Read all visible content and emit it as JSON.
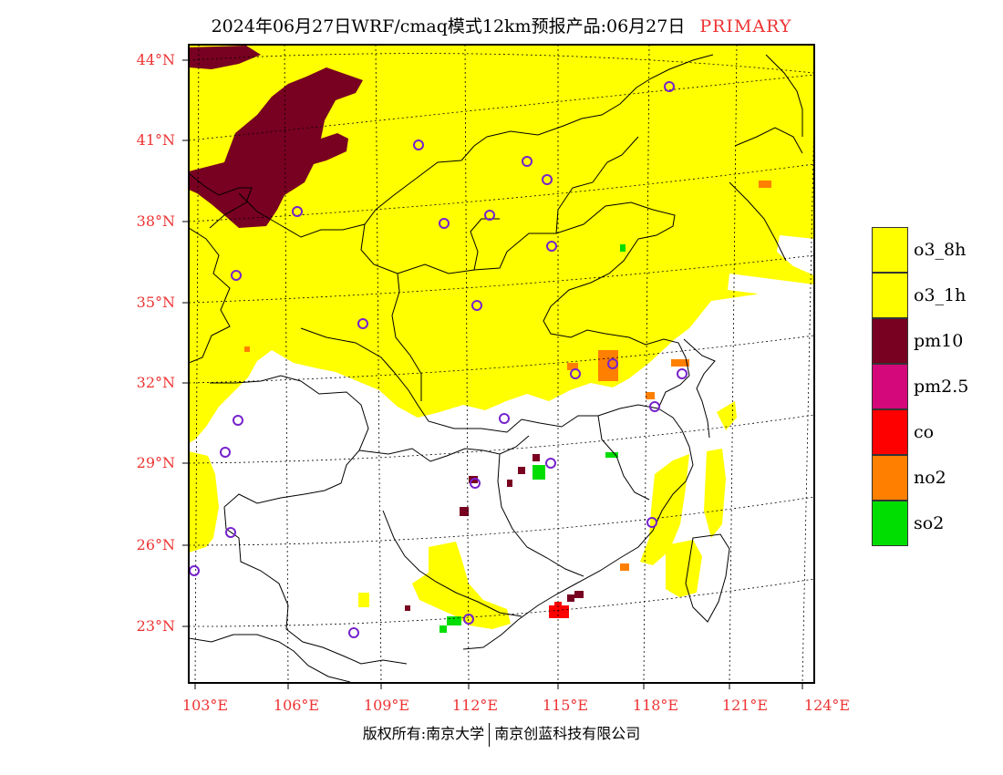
{
  "title": {
    "text": "2024年06月27日WRF/cmaq模式12km预报产品:06月27日",
    "tag": "PRIMARY"
  },
  "map": {
    "lat_labels": [
      "44°N",
      "41°N",
      "38°N",
      "35°N",
      "32°N",
      "29°N",
      "26°N",
      "23°N"
    ],
    "lon_labels": [
      "103°E",
      "106°E",
      "109°E",
      "112°E",
      "115°E",
      "118°E",
      "121°E",
      "124°E"
    ],
    "extent": {
      "lon": [
        102.7,
        124
      ],
      "lat": [
        21.0,
        44.5
      ]
    },
    "colors": {
      "o3_8h": "#ffff00",
      "o3_1h": "#ffff00",
      "pm10": "#780020",
      "pm25": "#d4087a",
      "co": "#ff0000",
      "no2": "#ff7f00",
      "so2": "#00dd00",
      "station": "#7722cc",
      "grid": "#000000",
      "border": "#000000"
    }
  },
  "legend": [
    {
      "label": "o3_8h",
      "color": "#ffff00"
    },
    {
      "label": "o3_1h",
      "color": "#ffff00"
    },
    {
      "label": "pm10",
      "color": "#780020"
    },
    {
      "label": "pm2.5",
      "color": "#d4087a"
    },
    {
      "label": "co",
      "color": "#ff0000"
    },
    {
      "label": "no2",
      "color": "#ff7f00"
    },
    {
      "label": "so2",
      "color": "#00dd00"
    }
  ],
  "copyright": {
    "left": "版权所有:南京大学",
    "right": "南京创蓝科技有限公司"
  }
}
